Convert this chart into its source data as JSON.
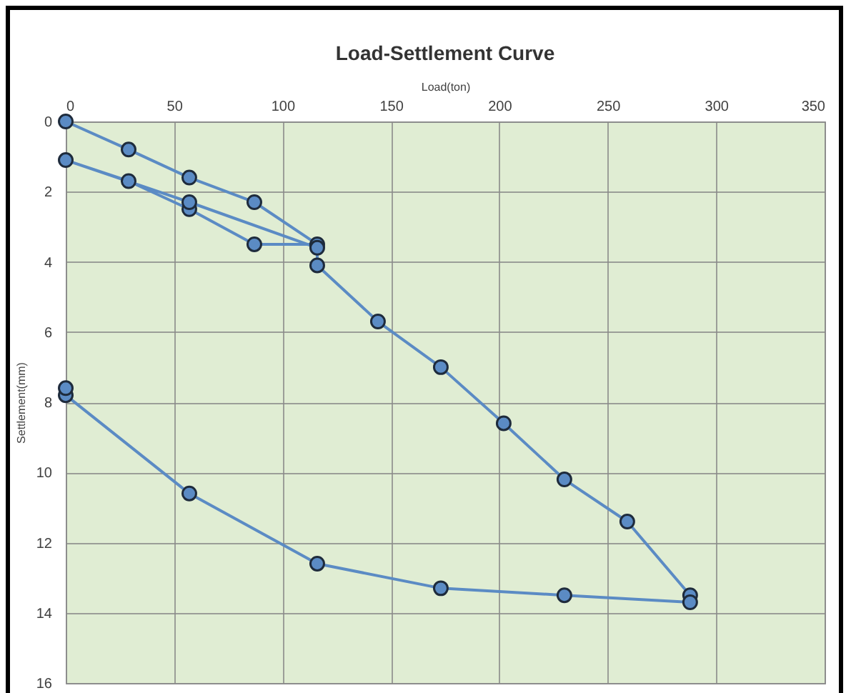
{
  "chart_data": {
    "type": "line",
    "title": "Load-Settlement Curve",
    "xlabel": "Load(ton)",
    "ylabel": "Settlement(mm)",
    "x": [
      0,
      29,
      57,
      87,
      116,
      87,
      57,
      29,
      0,
      57,
      116,
      116,
      144,
      173,
      202,
      230,
      259,
      288,
      288,
      230,
      173,
      116,
      57,
      0,
      0
    ],
    "series": [
      {
        "color": "#5b8bc4",
        "values": [
          0,
          0.8,
          1.6,
          2.3,
          3.5,
          3.5,
          2.5,
          1.7,
          1.1,
          2.3,
          3.6,
          4.1,
          5.7,
          7.0,
          8.6,
          10.2,
          11.4,
          13.5,
          13.7,
          13.5,
          13.3,
          12.6,
          10.6,
          7.8,
          7.6
        ]
      }
    ],
    "xlim": [
      0,
      350
    ],
    "xticks": [
      0,
      50,
      100,
      150,
      200,
      250,
      300,
      350
    ],
    "ylim": [
      16,
      0
    ],
    "yticks": [
      0,
      2,
      4,
      6,
      8,
      10,
      12,
      14,
      16
    ],
    "grid": true,
    "marker": "circle",
    "line_style": "solid"
  }
}
